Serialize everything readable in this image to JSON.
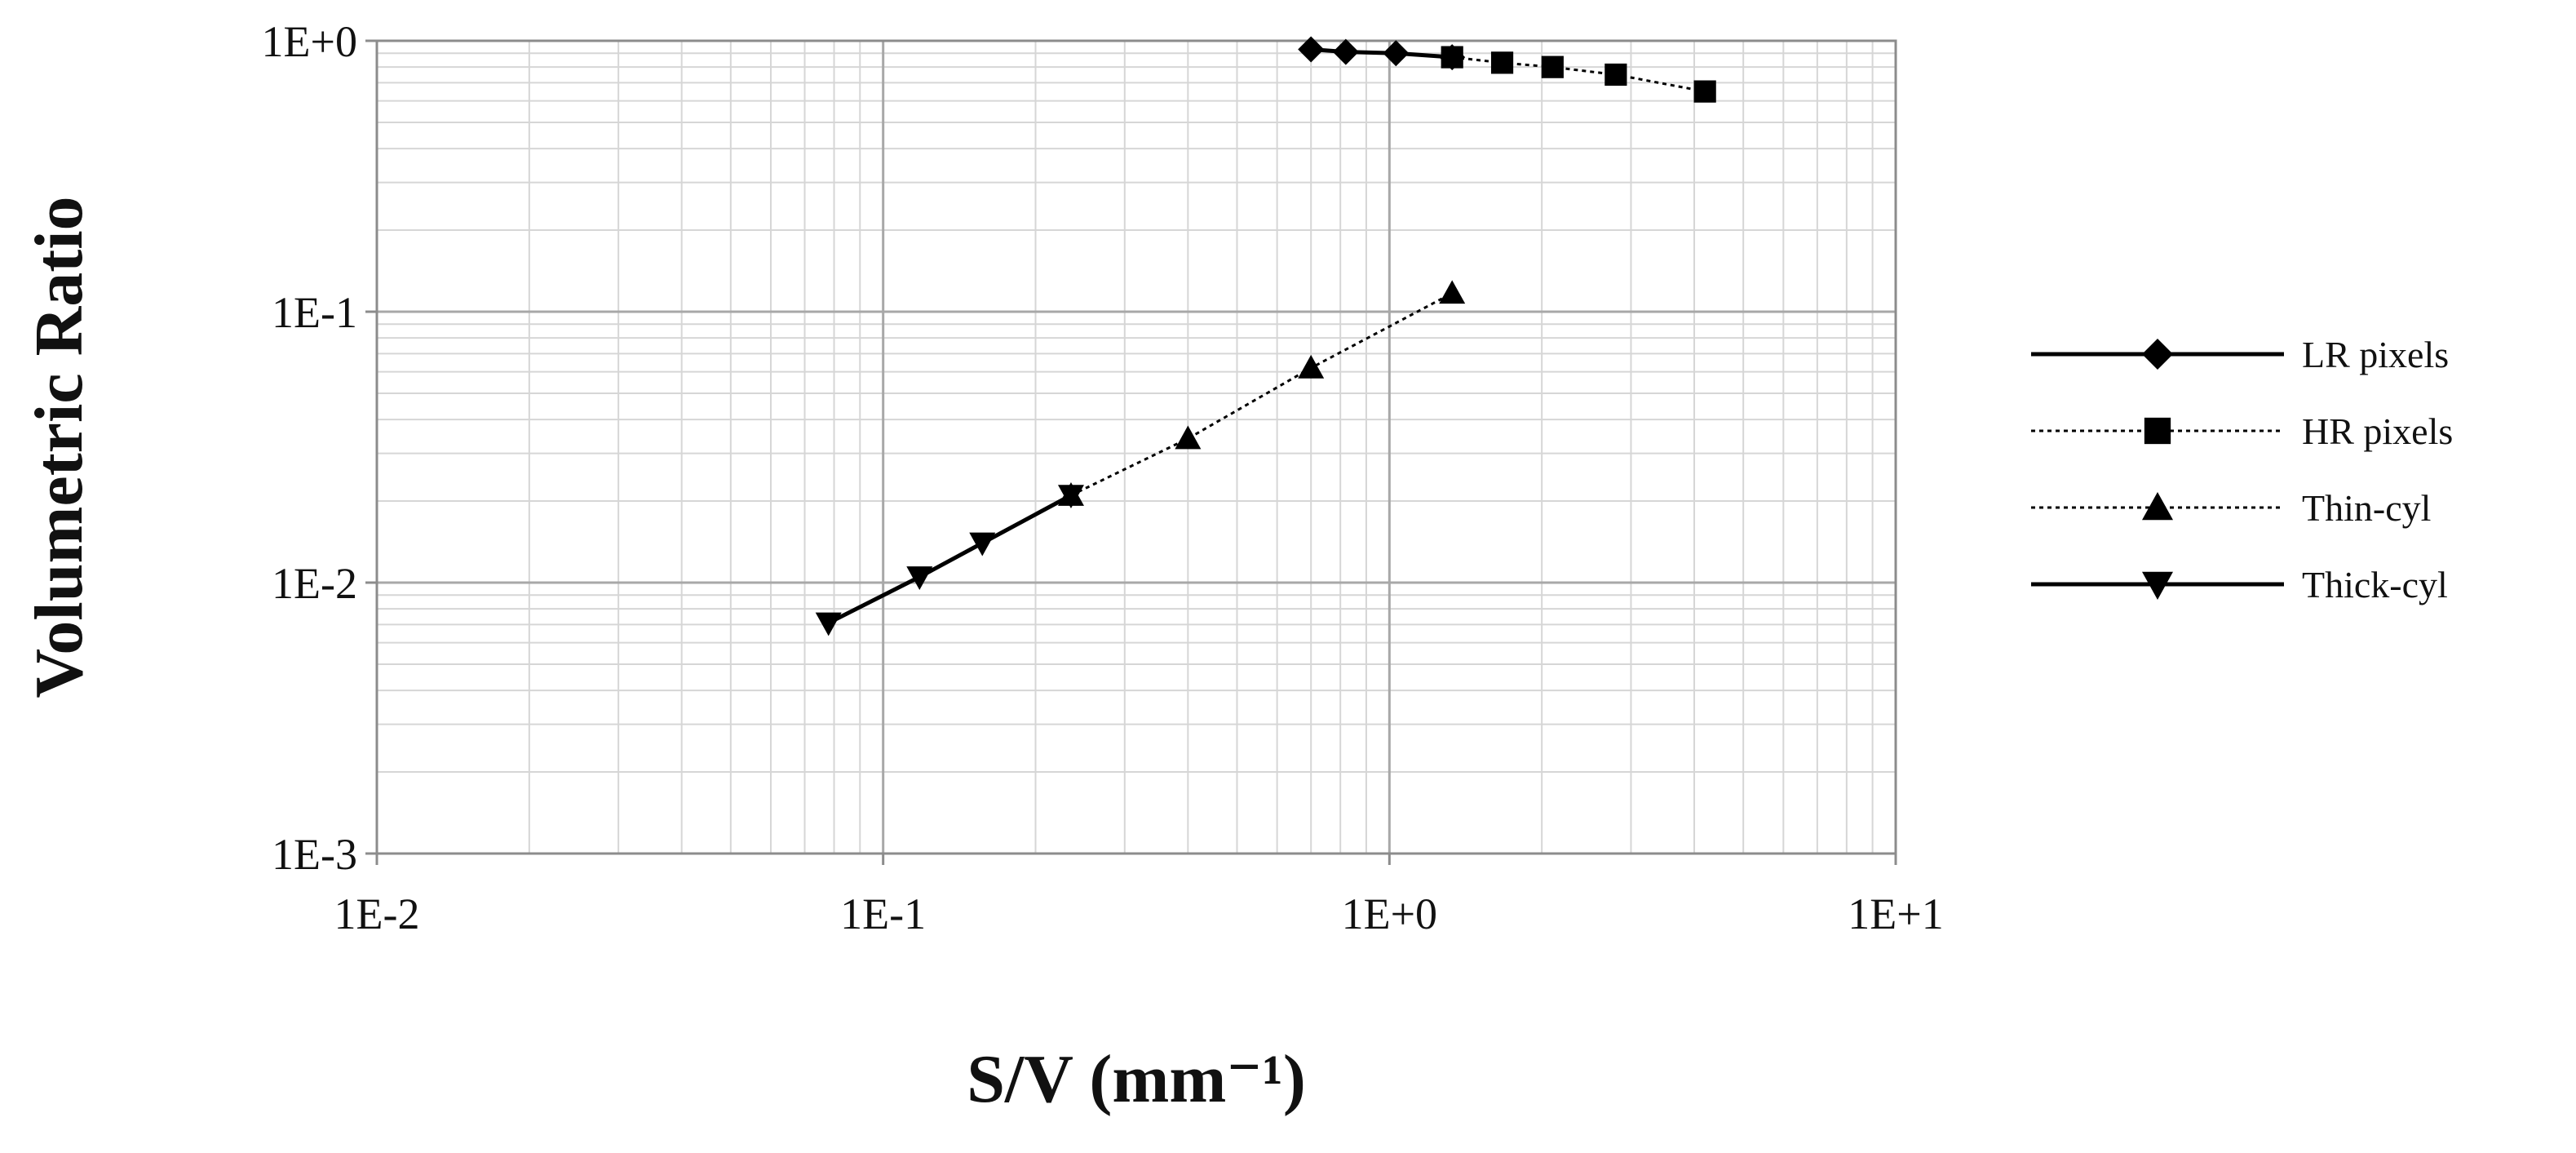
{
  "chart_data": {
    "type": "scatter",
    "title": "",
    "xlabel": "S/V (mm⁻¹)",
    "ylabel": "Volumetric Ratio",
    "xscale": "log",
    "yscale": "log",
    "xlim": [
      0.01,
      10
    ],
    "ylim": [
      0.001,
      1
    ],
    "xticks": [
      {
        "value": 0.01,
        "label": "1E-2"
      },
      {
        "value": 0.1,
        "label": "1E-1"
      },
      {
        "value": 1,
        "label": "1E+0"
      },
      {
        "value": 10,
        "label": "1E+1"
      }
    ],
    "yticks": [
      {
        "value": 0.001,
        "label": "1E-3"
      },
      {
        "value": 0.01,
        "label": "1E-2"
      },
      {
        "value": 0.1,
        "label": "1E-1"
      },
      {
        "value": 1,
        "label": "1E+0"
      }
    ],
    "grid": true,
    "legend_position": "right",
    "series": [
      {
        "name": "LR pixels",
        "line": "solid",
        "marker": "diamond",
        "x": [
          0.7,
          0.82,
          1.03,
          1.33
        ],
        "y": [
          0.93,
          0.91,
          0.9,
          0.87
        ]
      },
      {
        "name": "HR pixels",
        "line": "dotted",
        "marker": "square",
        "x": [
          1.33,
          1.67,
          2.1,
          2.8,
          4.2
        ],
        "y": [
          0.87,
          0.83,
          0.8,
          0.75,
          0.65
        ]
      },
      {
        "name": "Thin-cyl",
        "line": "dotted",
        "marker": "triangle-up",
        "x": [
          0.235,
          0.4,
          0.7,
          1.33
        ],
        "y": [
          0.021,
          0.034,
          0.062,
          0.117
        ]
      },
      {
        "name": "Thick-cyl",
        "line": "solid",
        "marker": "triangle-down",
        "x": [
          0.078,
          0.118,
          0.157,
          0.235
        ],
        "y": [
          0.0071,
          0.0105,
          0.014,
          0.021
        ]
      }
    ]
  }
}
